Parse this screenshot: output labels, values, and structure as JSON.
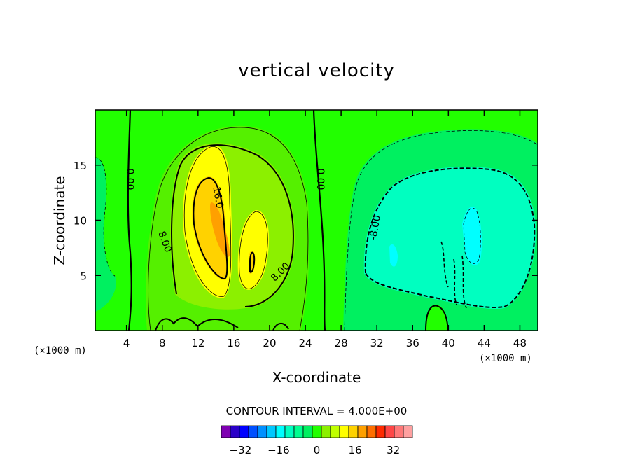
{
  "chart_data": {
    "type": "contour",
    "title": "vertical velocity",
    "xlabel": "X-coordinate",
    "ylabel": "Z-coordinate",
    "x_unit": "(×1000 m)",
    "y_unit": "(×1000 m)",
    "xlim": [
      0.5,
      50
    ],
    "ylim": [
      0,
      20
    ],
    "x_ticks": [
      4,
      8,
      12,
      16,
      20,
      24,
      28,
      32,
      36,
      40,
      44,
      48
    ],
    "y_ticks": [
      5,
      10,
      15
    ],
    "contour_interval_text": "CONTOUR INTERVAL = 4.000E+00",
    "contour_interval": 4,
    "contour_labels": [
      "0.00",
      "0.00",
      "16.0",
      "8.00",
      "8.00",
      "-8.00"
    ],
    "colorbar": {
      "min": -40,
      "max": 40,
      "tick_labels": [
        "-32",
        "-16",
        "0",
        "16",
        "32"
      ],
      "tick_values": [
        -32,
        -16,
        0,
        16,
        32
      ],
      "colors": [
        "#7f00b2",
        "#2a00c8",
        "#0000ff",
        "#0050ff",
        "#0090ff",
        "#00c8ff",
        "#00ffff",
        "#00ffc0",
        "#00ff90",
        "#00f060",
        "#22ff00",
        "#8cf000",
        "#c0ff00",
        "#ffff00",
        "#ffd200",
        "#ffa000",
        "#ff6e00",
        "#ff2a00",
        "#ff4646",
        "#ff7878",
        "#ffa0a0"
      ]
    }
  }
}
